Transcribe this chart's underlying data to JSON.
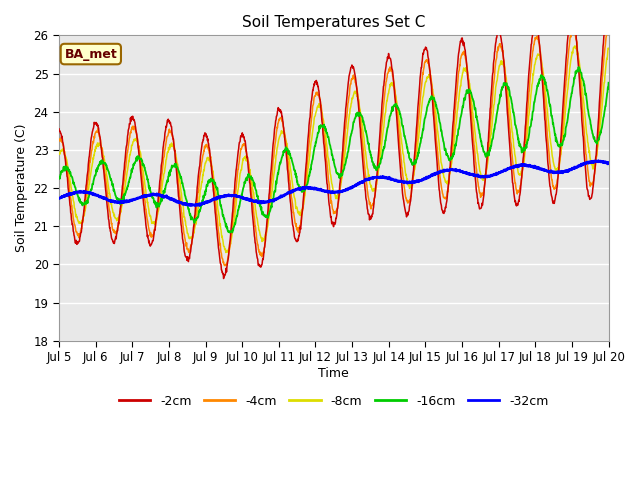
{
  "title": "Soil Temperatures Set C",
  "xlabel": "Time",
  "ylabel": "Soil Temperature (C)",
  "ylim": [
    18.0,
    26.0
  ],
  "yticks": [
    18.0,
    19.0,
    20.0,
    21.0,
    22.0,
    23.0,
    24.0,
    25.0,
    26.0
  ],
  "xtick_labels": [
    "Jul 5",
    "Jul 6",
    "Jul 7",
    "Jul 8",
    "Jul 9",
    "Jul 10",
    "Jul 11",
    "Jul 12",
    "Jul 13",
    "Jul 14",
    "Jul 15",
    "Jul 16",
    "Jul 17",
    "Jul 18",
    "Jul 19",
    "Jul 20"
  ],
  "colors": {
    "-2cm": "#cc0000",
    "-4cm": "#ff8800",
    "-8cm": "#dddd00",
    "-16cm": "#00cc00",
    "-32cm": "#0000ff"
  },
  "annotation_text": "BA_met",
  "annotation_box_facecolor": "#ffffcc",
  "annotation_box_edgecolor": "#996600",
  "background_color": "#e8e8e8",
  "legend_entries": [
    "-2cm",
    "-4cm",
    "-8cm",
    "-16cm",
    "-32cm"
  ]
}
